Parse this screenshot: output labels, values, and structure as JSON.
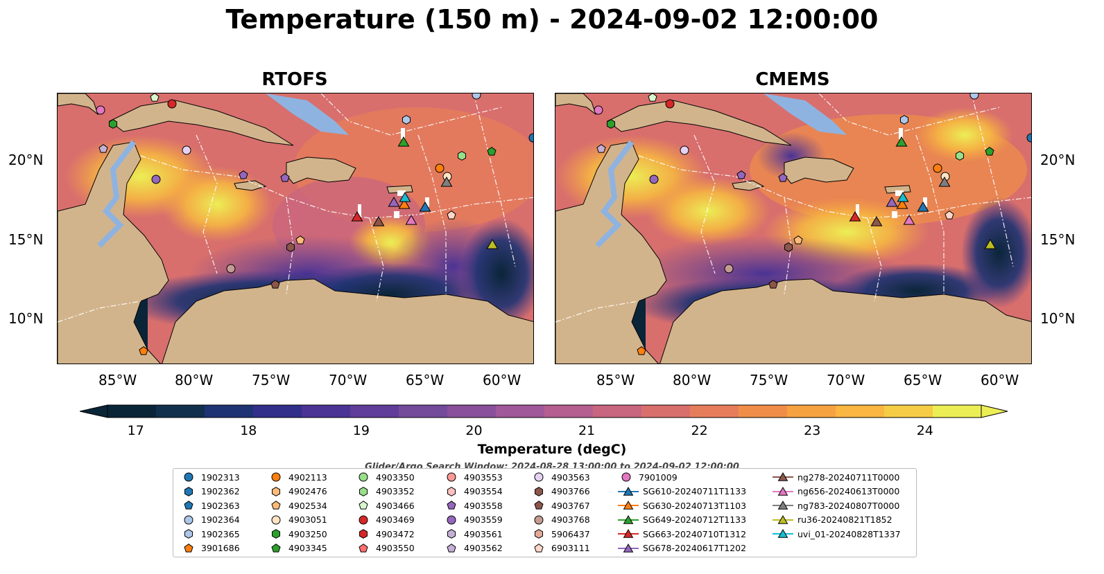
{
  "title": "Temperature (150 m) - 2024-09-02 12:00:00",
  "panels": [
    {
      "title": "RTOFS"
    },
    {
      "title": "CMEMS"
    }
  ],
  "lat_labels": [
    "20°N",
    "15°N",
    "10°N"
  ],
  "lon_labels": [
    "85°W",
    "80°W",
    "75°W",
    "70°W",
    "65°W",
    "60°W"
  ],
  "colorbar": {
    "ticks": [
      "17",
      "18",
      "19",
      "20",
      "21",
      "22",
      "23",
      "24"
    ],
    "title": "Temperature (degC)",
    "range": [
      16.75,
      24.5
    ],
    "colors": [
      "#0a2538",
      "#10304d",
      "#1e3373",
      "#312f8a",
      "#4a3394",
      "#5f3d99",
      "#744a9b",
      "#8a509b",
      "#a0589a",
      "#b45f90",
      "#c8657f",
      "#d86f6d",
      "#e67d5a",
      "#f08e49",
      "#f6a241",
      "#f9b640",
      "#f5cc45",
      "#ecee55"
    ]
  },
  "search_window": "Glider/Argo Search Window: 2024-08-28 13:00:00 to 2024-09-02 12:00:00",
  "legend": [
    {
      "label": "1902313",
      "shape": "circle",
      "color": "#1f77b4"
    },
    {
      "label": "1902362",
      "shape": "hexagon",
      "color": "#1f77b4"
    },
    {
      "label": "1902363",
      "shape": "pentagon",
      "color": "#1f77b4"
    },
    {
      "label": "1902364",
      "shape": "circle",
      "color": "#aec7e8"
    },
    {
      "label": "1902365",
      "shape": "hexagon",
      "color": "#aec7e8"
    },
    {
      "label": "3901686",
      "shape": "pentagon",
      "color": "#ff7f0e"
    },
    {
      "label": "4902113",
      "shape": "circle",
      "color": "#ff7f0e"
    },
    {
      "label": "4902476",
      "shape": "hexagon",
      "color": "#ffbb78"
    },
    {
      "label": "4902534",
      "shape": "pentagon",
      "color": "#ffbb78"
    },
    {
      "label": "4903051",
      "shape": "circle",
      "color": "#ffe4c4"
    },
    {
      "label": "4903250",
      "shape": "hexagon",
      "color": "#2ca02c"
    },
    {
      "label": "4903345",
      "shape": "pentagon",
      "color": "#2ca02c"
    },
    {
      "label": "4903350",
      "shape": "circle",
      "color": "#98df8a"
    },
    {
      "label": "4903352",
      "shape": "hexagon",
      "color": "#98df8a"
    },
    {
      "label": "4903466",
      "shape": "pentagon",
      "color": "#d9f7cf"
    },
    {
      "label": "4903469",
      "shape": "circle",
      "color": "#d62728"
    },
    {
      "label": "4903472",
      "shape": "hexagon",
      "color": "#d62728"
    },
    {
      "label": "4903550",
      "shape": "pentagon",
      "color": "#ff6f6f"
    },
    {
      "label": "4903553",
      "shape": "circle",
      "color": "#ff9896"
    },
    {
      "label": "4903554",
      "shape": "hexagon",
      "color": "#ffc0c0"
    },
    {
      "label": "4903558",
      "shape": "pentagon",
      "color": "#9467bd"
    },
    {
      "label": "4903559",
      "shape": "circle",
      "color": "#9467bd"
    },
    {
      "label": "4903561",
      "shape": "hexagon",
      "color": "#c5b0d5"
    },
    {
      "label": "4903562",
      "shape": "pentagon",
      "color": "#c5b0d5"
    },
    {
      "label": "4903563",
      "shape": "circle",
      "color": "#e6d2f2"
    },
    {
      "label": "4903766",
      "shape": "hexagon",
      "color": "#8c564b"
    },
    {
      "label": "4903767",
      "shape": "pentagon",
      "color": "#8c564b"
    },
    {
      "label": "4903768",
      "shape": "circle",
      "color": "#c49c94"
    },
    {
      "label": "5906437",
      "shape": "hexagon",
      "color": "#e5a99a"
    },
    {
      "label": "6903111",
      "shape": "pentagon",
      "color": "#ffd7c9"
    },
    {
      "label": "7901009",
      "shape": "circle",
      "color": "#e377c2"
    },
    {
      "label": "SG610-20240711T1133",
      "shape": "triangle",
      "color": "#1f77b4"
    },
    {
      "label": "SG630-20240713T1103",
      "shape": "triangle",
      "color": "#ff7f0e"
    },
    {
      "label": "SG649-20240712T1133",
      "shape": "triangle",
      "color": "#2ca02c"
    },
    {
      "label": "SG663-20240710T1312",
      "shape": "triangle",
      "color": "#d62728"
    },
    {
      "label": "SG678-20240617T1202",
      "shape": "triangle",
      "color": "#9467bd"
    },
    {
      "label": "ng278-20240711T0000",
      "shape": "triangle",
      "color": "#8c564b"
    },
    {
      "label": "ng656-20240613T0000",
      "shape": "triangle",
      "color": "#e377c2"
    },
    {
      "label": "ng783-20240807T0000",
      "shape": "triangle",
      "color": "#7f7f7f"
    },
    {
      "label": "ru36-20240821T1852",
      "shape": "triangle",
      "color": "#bcbd22"
    },
    {
      "label": "uvi_01-20240828T1337",
      "shape": "triangle",
      "color": "#17becf"
    }
  ]
}
